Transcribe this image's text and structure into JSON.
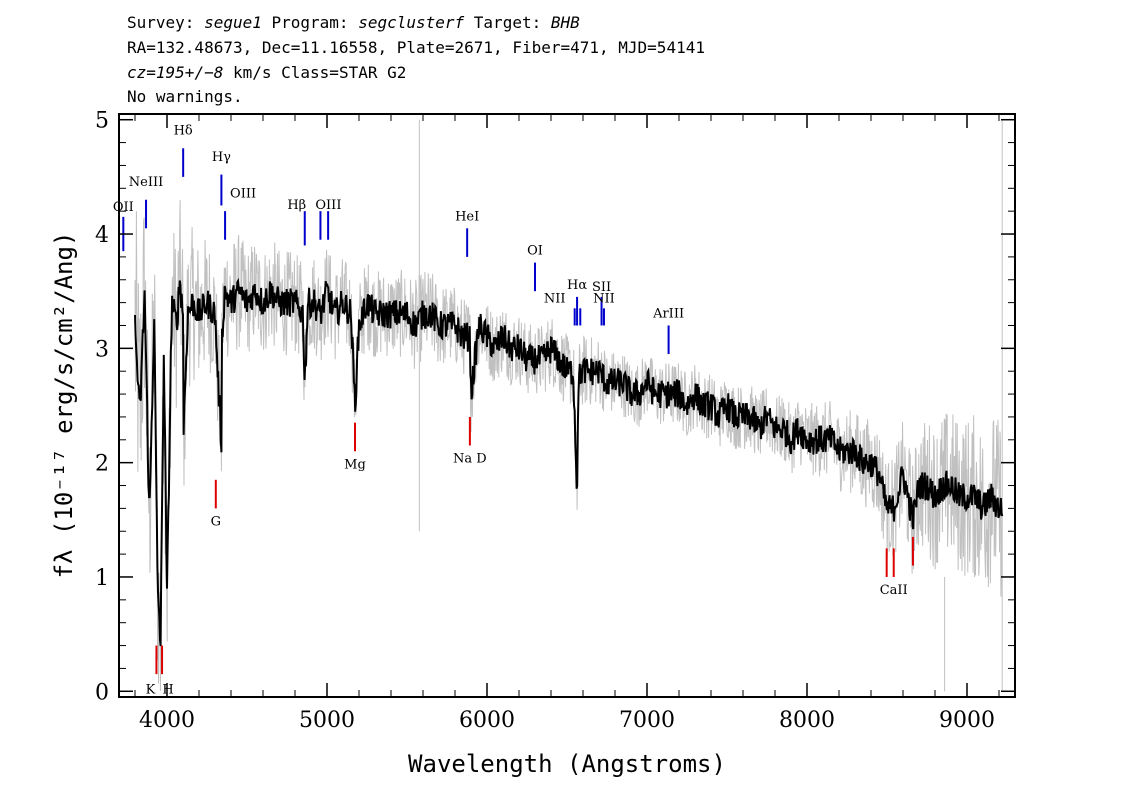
{
  "header": {
    "line1": {
      "survey_label": "Survey: ",
      "survey": "segue1",
      "program_label": " Program: ",
      "program": "segclusterf",
      "target_label": " Target: ",
      "target": "BHB"
    },
    "line2": "RA=132.48673, Dec=11.16558, Plate=2671, Fiber=471, MJD=54141",
    "line3": {
      "cz_label": "cz=",
      "cz_value": "195+/−8",
      "cz_rest": " km/s Class=STAR G2"
    },
    "line4": "No warnings."
  },
  "chart_data": {
    "type": "line",
    "xlabel": "Wavelength (Angstroms)",
    "ylabel": "fλ (10⁻¹⁷ erg/s/cm²/Ang)",
    "xlim": [
      3700,
      9300
    ],
    "ylim": [
      -0.05,
      5.05
    ],
    "x_ticks": [
      4000,
      5000,
      6000,
      7000,
      8000,
      9000
    ],
    "x_tick_labels": [
      "4000",
      "5000",
      "6000",
      "7000",
      "8000",
      "9000"
    ],
    "y_ticks": [
      0,
      1,
      2,
      3,
      4,
      5
    ],
    "y_tick_labels": [
      "0",
      "1",
      "2",
      "3",
      "4",
      "5"
    ],
    "grid": false,
    "colors": {
      "flux": "#000000",
      "error_band": "#c0c0c0",
      "emission": "#0000cc",
      "absorption": "#dd0000"
    },
    "series": [
      {
        "role": "flux",
        "x": [
          3800,
          3830,
          3860,
          3890,
          3920,
          3940,
          3960,
          3980,
          4000,
          4030,
          4060,
          4080,
          4100,
          4101,
          4130,
          4160,
          4200,
          4250,
          4300,
          4320,
          4340,
          4341,
          4360,
          4400,
          4450,
          4500,
          4550,
          4600,
          4650,
          4700,
          4750,
          4800,
          4850,
          4861,
          4880,
          4920,
          4960,
          5000,
          5050,
          5100,
          5150,
          5175,
          5200,
          5250,
          5300,
          5350,
          5400,
          5450,
          5500,
          5550,
          5600,
          5650,
          5700,
          5750,
          5800,
          5850,
          5893,
          5900,
          5950,
          6000,
          6050,
          6100,
          6150,
          6200,
          6250,
          6300,
          6350,
          6400,
          6450,
          6500,
          6540,
          6563,
          6570,
          6590,
          6620,
          6650,
          6700,
          6750,
          6800,
          6850,
          6900,
          6950,
          7000,
          7050,
          7100,
          7150,
          7200,
          7250,
          7300,
          7350,
          7400,
          7450,
          7500,
          7550,
          7600,
          7650,
          7700,
          7750,
          7800,
          7850,
          7900,
          7950,
          8000,
          8050,
          8100,
          8150,
          8200,
          8250,
          8300,
          8350,
          8400,
          8450,
          8498,
          8542,
          8600,
          8662,
          8700,
          8750,
          8800,
          8850,
          8900,
          8950,
          9000,
          9050,
          9100,
          9150,
          9200,
          9220
        ],
        "y": [
          3.2,
          2.4,
          3.5,
          1.5,
          3.3,
          1.0,
          0.4,
          3.0,
          0.8,
          3.4,
          3.2,
          3.6,
          3.3,
          2.2,
          3.3,
          3.4,
          3.3,
          3.4,
          3.3,
          2.7,
          2.2,
          3.0,
          3.5,
          3.4,
          3.5,
          3.4,
          3.5,
          3.4,
          3.5,
          3.4,
          3.4,
          3.4,
          3.3,
          2.7,
          3.4,
          3.4,
          3.3,
          3.5,
          3.3,
          3.4,
          3.3,
          2.5,
          3.2,
          3.4,
          3.3,
          3.3,
          3.3,
          3.3,
          3.3,
          3.2,
          3.3,
          3.3,
          3.2,
          3.2,
          3.2,
          3.1,
          3.1,
          2.6,
          3.2,
          3.1,
          3.0,
          3.1,
          3.0,
          3.0,
          2.9,
          2.9,
          2.9,
          3.0,
          2.9,
          2.8,
          2.8,
          1.7,
          2.7,
          2.8,
          2.8,
          2.8,
          2.8,
          2.7,
          2.7,
          2.7,
          2.6,
          2.6,
          2.7,
          2.6,
          2.6,
          2.6,
          2.6,
          2.5,
          2.6,
          2.5,
          2.5,
          2.4,
          2.5,
          2.4,
          2.4,
          2.4,
          2.3,
          2.4,
          2.3,
          2.3,
          2.2,
          2.3,
          2.2,
          2.2,
          2.2,
          2.2,
          2.1,
          2.1,
          2.1,
          2.0,
          2.0,
          1.9,
          1.6,
          1.6,
          1.9,
          1.5,
          1.8,
          1.8,
          1.7,
          1.8,
          1.8,
          1.7,
          1.7,
          1.7,
          1.6,
          1.7,
          1.6,
          1.6
        ]
      },
      {
        "role": "error",
        "x": [
          3800,
          3900,
          4000,
          4100,
          4200,
          4300,
          4400,
          4500,
          4600,
          4700,
          4800,
          4900,
          5000,
          5200,
          5400,
          5600,
          5800,
          6000,
          6200,
          6400,
          6600,
          6800,
          7000,
          7200,
          7400,
          7600,
          7800,
          8000,
          8200,
          8400,
          8600,
          8800,
          9000,
          9200
        ],
        "y": [
          0.8,
          0.6,
          0.5,
          0.45,
          0.4,
          0.35,
          0.35,
          0.3,
          0.3,
          0.3,
          0.28,
          0.28,
          0.27,
          0.25,
          0.24,
          0.25,
          0.22,
          0.2,
          0.2,
          0.2,
          0.2,
          0.18,
          0.18,
          0.18,
          0.18,
          0.18,
          0.18,
          0.2,
          0.22,
          0.25,
          0.3,
          0.4,
          0.45,
          0.5
        ]
      }
    ],
    "spikes": [
      {
        "x": 5577,
        "y0": 1.4,
        "y1": 5.0
      },
      {
        "x": 8860,
        "y0": 0.0,
        "y1": 1.0
      },
      {
        "x": 9220,
        "y0": 0.0,
        "y1": 5.0
      }
    ],
    "emission_lines": [
      {
        "label": "OII",
        "x": 3727,
        "y0": 3.85,
        "y1": 4.15,
        "ly": 4.2,
        "lx_shift": 0
      },
      {
        "label": "NeIII",
        "x": 3869,
        "y0": 4.05,
        "y1": 4.3,
        "ly": 4.42,
        "lx_shift": 0
      },
      {
        "label": "Hδ",
        "x": 4101,
        "y0": 4.5,
        "y1": 4.75,
        "ly": 4.87,
        "lx_shift": 0
      },
      {
        "label": "Hγ",
        "x": 4340,
        "y0": 4.25,
        "y1": 4.52,
        "ly": 4.64,
        "lx_shift": 0
      },
      {
        "label": "OIII",
        "x": 4363,
        "y0": 3.95,
        "y1": 4.2,
        "ly": 4.32,
        "lx_shift": 18
      },
      {
        "label": "Hβ",
        "x": 4861,
        "y0": 3.9,
        "y1": 4.2,
        "ly": 4.22,
        "lx_shift": -8
      },
      {
        "label": "OIII",
        "x": 4959,
        "y0": 3.95,
        "y1": 4.2,
        "ly": 4.22,
        "lx_shift": 8
      },
      {
        "label": "OIII",
        "x": 5007,
        "y0": 3.95,
        "y1": 4.2,
        "ly": 4.22,
        "lx_shift": 0,
        "hide_label": true
      },
      {
        "label": "HeI",
        "x": 5876,
        "y0": 3.8,
        "y1": 4.05,
        "ly": 4.12,
        "lx_shift": 0
      },
      {
        "label": "OI",
        "x": 6300,
        "y0": 3.5,
        "y1": 3.75,
        "ly": 3.82,
        "lx_shift": 0
      },
      {
        "label": "NII",
        "x": 6548,
        "y0": 3.2,
        "y1": 3.35,
        "ly": 3.4,
        "lx_shift": -20
      },
      {
        "label": "Hα",
        "x": 6563,
        "y0": 3.2,
        "y1": 3.45,
        "ly": 3.52,
        "lx_shift": 0
      },
      {
        "label": "NII",
        "x": 6583,
        "y0": 3.2,
        "y1": 3.35,
        "ly": 3.4,
        "lx_shift": 0,
        "hide_label": true
      },
      {
        "label": "SII",
        "x": 6716,
        "y0": 3.2,
        "y1": 3.45,
        "ly": 3.5,
        "lx_shift": 0
      },
      {
        "label": "NII",
        "x": 6731,
        "y0": 3.2,
        "y1": 3.35,
        "ly": 3.4,
        "lx_shift": 0
      },
      {
        "label": "ArIII",
        "x": 7135,
        "y0": 2.95,
        "y1": 3.2,
        "ly": 3.27,
        "lx_shift": 0
      }
    ],
    "absorption_lines": [
      {
        "label": "K",
        "x": 3934,
        "y0": 0.15,
        "y1": 0.4,
        "ly": -0.02,
        "lx_shift": -6
      },
      {
        "label": "H",
        "x": 3969,
        "y0": 0.15,
        "y1": 0.4,
        "ly": -0.02,
        "lx_shift": 6
      },
      {
        "label": "G",
        "x": 4305,
        "y0": 1.6,
        "y1": 1.85,
        "ly": 1.45,
        "lx_shift": 0
      },
      {
        "label": "Mg",
        "x": 5175,
        "y0": 2.1,
        "y1": 2.35,
        "ly": 1.95,
        "lx_shift": 0
      },
      {
        "label": "Na D",
        "x": 5893,
        "y0": 2.15,
        "y1": 2.4,
        "ly": 2.0,
        "lx_shift": 0
      },
      {
        "label": "CaII",
        "x": 8498,
        "y0": 1.0,
        "y1": 1.25,
        "ly": 0.85,
        "lx_shift": 0,
        "hide_label": true
      },
      {
        "label": "CaII",
        "x": 8542,
        "y0": 1.0,
        "y1": 1.25,
        "ly": 0.85,
        "lx_shift": 0
      },
      {
        "label": "CaII",
        "x": 8662,
        "y0": 1.1,
        "y1": 1.35,
        "ly": 0.85,
        "lx_shift": 0,
        "hide_label": true
      }
    ]
  }
}
